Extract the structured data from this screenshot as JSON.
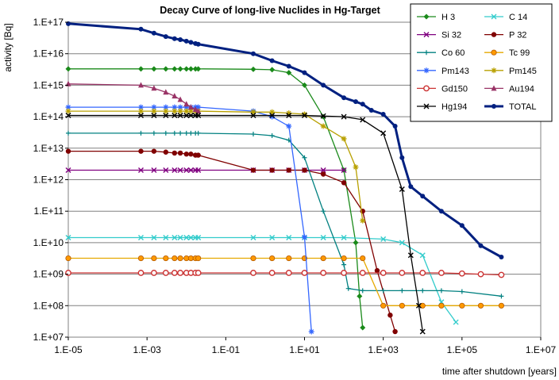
{
  "chart_data": {
    "type": "line",
    "title": "Decay Curve of long-live Nuclides in Hg-Target",
    "xlabel": "time after shutdown [years]",
    "ylabel": "activity [Bq]",
    "x_scale": "log",
    "y_scale": "log",
    "xlim": [
      1e-05,
      10000000.0
    ],
    "ylim": [
      10000000.0,
      1e+17
    ],
    "x_tick_labels": [
      "1.E-05",
      "1.E-03",
      "1.E-01",
      "1.E+01",
      "1.E+03",
      "1.E+05",
      "1.E+07"
    ],
    "y_tick_labels": [
      "1.E+07",
      "1.E+08",
      "1.E+09",
      "1.E+10",
      "1.E+11",
      "1.E+12",
      "1.E+13",
      "1.E+14",
      "1.E+15",
      "1.E+16",
      "1.E+17"
    ],
    "grid": "horizontal",
    "legend_position": "top-right",
    "series": [
      {
        "name": "H  3",
        "color": "#1a8a1a",
        "marker": "diamond",
        "x": [
          1e-05,
          0.0007,
          0.0015,
          0.003,
          0.005,
          0.007,
          0.01,
          0.013,
          0.017,
          0.02,
          0.5,
          1.5,
          4,
          10,
          30,
          100,
          200,
          250,
          300
        ],
        "y": [
          3300000000000000.0,
          3300000000000000.0,
          3300000000000000.0,
          3300000000000000.0,
          3300000000000000.0,
          3300000000000000.0,
          3300000000000000.0,
          3300000000000000.0,
          3300000000000000.0,
          3300000000000000.0,
          3200000000000000.0,
          3100000000000000.0,
          2500000000000000.0,
          1000000000000000.0,
          100000000000000.0,
          2000000000000.0,
          10000000000.0,
          200000000.0,
          20000000.0
        ]
      },
      {
        "name": "C 14",
        "color": "#33cccc",
        "marker": "x",
        "x": [
          1e-05,
          0.0007,
          0.0015,
          0.003,
          0.005,
          0.007,
          0.01,
          0.013,
          0.017,
          0.02,
          0.5,
          1.5,
          4,
          10,
          30,
          100,
          1000,
          3000,
          10000,
          30000,
          70000
        ],
        "y": [
          14500000000.0,
          14500000000.0,
          14500000000.0,
          14500000000.0,
          14500000000.0,
          14500000000.0,
          14500000000.0,
          14500000000.0,
          14500000000.0,
          14500000000.0,
          14500000000.0,
          14500000000.0,
          14500000000.0,
          14500000000.0,
          14500000000.0,
          14500000000.0,
          13000000000.0,
          10000000000.0,
          4000000000.0,
          130000000.0,
          30000000.0
        ]
      },
      {
        "name": "Si 32",
        "color": "#800080",
        "marker": "x",
        "x": [
          1e-05,
          0.0007,
          0.0015,
          0.003,
          0.005,
          0.007,
          0.01,
          0.013,
          0.017,
          0.02,
          0.5,
          1.5,
          4,
          10,
          30,
          100
        ],
        "y": [
          2000000000000.0,
          2000000000000.0,
          2000000000000.0,
          2000000000000.0,
          2000000000000.0,
          2000000000000.0,
          2000000000000.0,
          2000000000000.0,
          2000000000000.0,
          2000000000000.0,
          2000000000000.0,
          2000000000000.0,
          2000000000000.0,
          2000000000000.0,
          2000000000000.0,
          2000000000000.0
        ]
      },
      {
        "name": "P 32",
        "color": "#800000",
        "marker": "circle",
        "x": [
          1e-05,
          0.0007,
          0.0015,
          0.003,
          0.005,
          0.007,
          0.01,
          0.013,
          0.017,
          0.02,
          0.5,
          1.5,
          4,
          10,
          30,
          100,
          300,
          700,
          1500,
          2000
        ],
        "y": [
          8000000000000.0,
          8000000000000.0,
          8000000000000.0,
          7500000000000.0,
          7000000000000.0,
          7000000000000.0,
          6500000000000.0,
          6500000000000.0,
          6000000000000.0,
          6000000000000.0,
          2000000000000.0,
          2000000000000.0,
          2000000000000.0,
          2000000000000.0,
          1500000000000.0,
          800000000000.0,
          100000000000.0,
          1300000000.0,
          50000000.0,
          15000000.0
        ]
      },
      {
        "name": "Co 60",
        "color": "#008080",
        "marker": "plus",
        "x": [
          1e-05,
          0.0007,
          0.0015,
          0.003,
          0.005,
          0.007,
          0.01,
          0.013,
          0.017,
          0.02,
          0.5,
          1.5,
          4,
          10,
          30,
          100,
          130,
          300,
          1000,
          3000,
          10000,
          30000,
          100000,
          1000000
        ],
        "y": [
          30000000000000.0,
          30000000000000.0,
          30000000000000.0,
          30000000000000.0,
          30000000000000.0,
          30000000000000.0,
          30000000000000.0,
          30000000000000.0,
          30000000000000.0,
          30000000000000.0,
          28000000000000.0,
          25000000000000.0,
          18000000000000.0,
          5000000000000.0,
          100000000000.0,
          2000000000.0,
          350000000.0,
          300000000.0,
          300000000.0,
          300000000.0,
          300000000.0,
          300000000.0,
          280000000.0,
          200000000.0
        ]
      },
      {
        "name": "Tc 99",
        "color": "#e6a800",
        "marker": "circle-orange",
        "x": [
          1e-05,
          0.0007,
          0.0015,
          0.003,
          0.005,
          0.007,
          0.01,
          0.013,
          0.017,
          0.02,
          0.5,
          1.5,
          4,
          10,
          30,
          100,
          300,
          1000,
          3000,
          10000,
          30000,
          100000,
          300000,
          1000000
        ],
        "y": [
          3200000000.0,
          3200000000.0,
          3200000000.0,
          3200000000.0,
          3200000000.0,
          3200000000.0,
          3200000000.0,
          3200000000.0,
          3200000000.0,
          3200000000.0,
          3200000000.0,
          3200000000.0,
          3200000000.0,
          3200000000.0,
          3200000000.0,
          3200000000.0,
          3200000000.0,
          100000000.0,
          100000000.0,
          100000000.0,
          100000000.0,
          100000000.0,
          100000000.0,
          100000000.0
        ]
      },
      {
        "name": "Pm143",
        "color": "#3366ff",
        "marker": "star",
        "x": [
          1e-05,
          0.0007,
          0.0015,
          0.003,
          0.005,
          0.007,
          0.01,
          0.013,
          0.017,
          0.02,
          0.5,
          1.5,
          4,
          10,
          15
        ],
        "y": [
          200000000000000.0,
          200000000000000.0,
          200000000000000.0,
          200000000000000.0,
          200000000000000.0,
          200000000000000.0,
          200000000000000.0,
          200000000000000.0,
          200000000000000.0,
          200000000000000.0,
          150000000000000.0,
          100000000000000.0,
          50000000000000.0,
          15000000000.0,
          15000000.0
        ]
      },
      {
        "name": "Pm145",
        "color": "#b8a000",
        "marker": "star-yellow",
        "x": [
          1e-05,
          0.0007,
          0.0015,
          0.003,
          0.005,
          0.007,
          0.01,
          0.013,
          0.017,
          0.02,
          0.5,
          1.5,
          4,
          10,
          30,
          100,
          200,
          300
        ],
        "y": [
          150000000000000.0,
          150000000000000.0,
          150000000000000.0,
          150000000000000.0,
          150000000000000.0,
          150000000000000.0,
          150000000000000.0,
          150000000000000.0,
          150000000000000.0,
          150000000000000.0,
          140000000000000.0,
          140000000000000.0,
          130000000000000.0,
          120000000000000.0,
          50000000000000.0,
          20000000000000.0,
          2500000000000.0,
          50000000000.0
        ]
      },
      {
        "name": "Gd150",
        "color": "#cc3333",
        "marker": "circle-red",
        "x": [
          1e-05,
          0.0007,
          0.0015,
          0.003,
          0.005,
          0.007,
          0.01,
          0.013,
          0.017,
          0.02,
          0.5,
          1.5,
          4,
          10,
          30,
          100,
          300,
          1000,
          3000,
          10000,
          30000,
          100000,
          300000,
          1000000
        ],
        "y": [
          1100000000.0,
          1100000000.0,
          1100000000.0,
          1100000000.0,
          1100000000.0,
          1100000000.0,
          1100000000.0,
          1100000000.0,
          1100000000.0,
          1100000000.0,
          1100000000.0,
          1100000000.0,
          1100000000.0,
          1100000000.0,
          1100000000.0,
          1100000000.0,
          1100000000.0,
          1100000000.0,
          1100000000.0,
          1100000000.0,
          1100000000.0,
          1050000000.0,
          1000000000.0,
          950000000.0
        ]
      },
      {
        "name": "Au194",
        "color": "#993366",
        "marker": "triangle",
        "x": [
          1e-05,
          0.0007,
          0.0015,
          0.003,
          0.005,
          0.007,
          0.01,
          0.013,
          0.017,
          0.02
        ],
        "y": [
          1100000000000000.0,
          1000000000000000.0,
          800000000000000.0,
          600000000000000.0,
          450000000000000.0,
          350000000000000.0,
          250000000000000.0,
          200000000000000.0,
          170000000000000.0,
          150000000000000.0
        ]
      },
      {
        "name": "Hg194",
        "color": "#000000",
        "marker": "x",
        "x": [
          1e-05,
          0.0007,
          0.0015,
          0.003,
          0.005,
          0.007,
          0.01,
          0.013,
          0.017,
          0.02,
          0.5,
          1.5,
          4,
          10,
          30,
          100,
          300,
          1000,
          3000,
          5000,
          8000,
          10000
        ],
        "y": [
          110000000000000.0,
          110000000000000.0,
          110000000000000.0,
          110000000000000.0,
          110000000000000.0,
          110000000000000.0,
          110000000000000.0,
          110000000000000.0,
          110000000000000.0,
          110000000000000.0,
          110000000000000.0,
          110000000000000.0,
          110000000000000.0,
          110000000000000.0,
          105000000000000.0,
          100000000000000.0,
          80000000000000.0,
          30000000000000.0,
          500000000000.0,
          4000000000.0,
          100000000.0,
          15000000.0
        ]
      },
      {
        "name": "TOTAL",
        "color": "#002080",
        "marker": "circle-navy",
        "x": [
          1e-05,
          0.0007,
          0.0015,
          0.003,
          0.005,
          0.007,
          0.01,
          0.013,
          0.017,
          0.02,
          0.5,
          1.5,
          4,
          10,
          30,
          100,
          200,
          300,
          500,
          1000,
          2000,
          3000,
          5000,
          10000,
          30000,
          100000,
          300000,
          1000000
        ],
        "y": [
          9e+16,
          6e+16,
          4.5e+16,
          3.5e+16,
          3e+16,
          2.8e+16,
          2.5e+16,
          2.3e+16,
          2.1e+16,
          2e+16,
          1e+16,
          6000000000000000.0,
          4000000000000000.0,
          2500000000000000.0,
          1000000000000000.0,
          400000000000000.0,
          300000000000000.0,
          250000000000000.0,
          160000000000000.0,
          120000000000000.0,
          50000000000000.0,
          5000000000000.0,
          600000000000.0,
          300000000000.0,
          100000000000.0,
          35000000000.0,
          8000000000.0,
          3500000000.0
        ]
      }
    ]
  }
}
